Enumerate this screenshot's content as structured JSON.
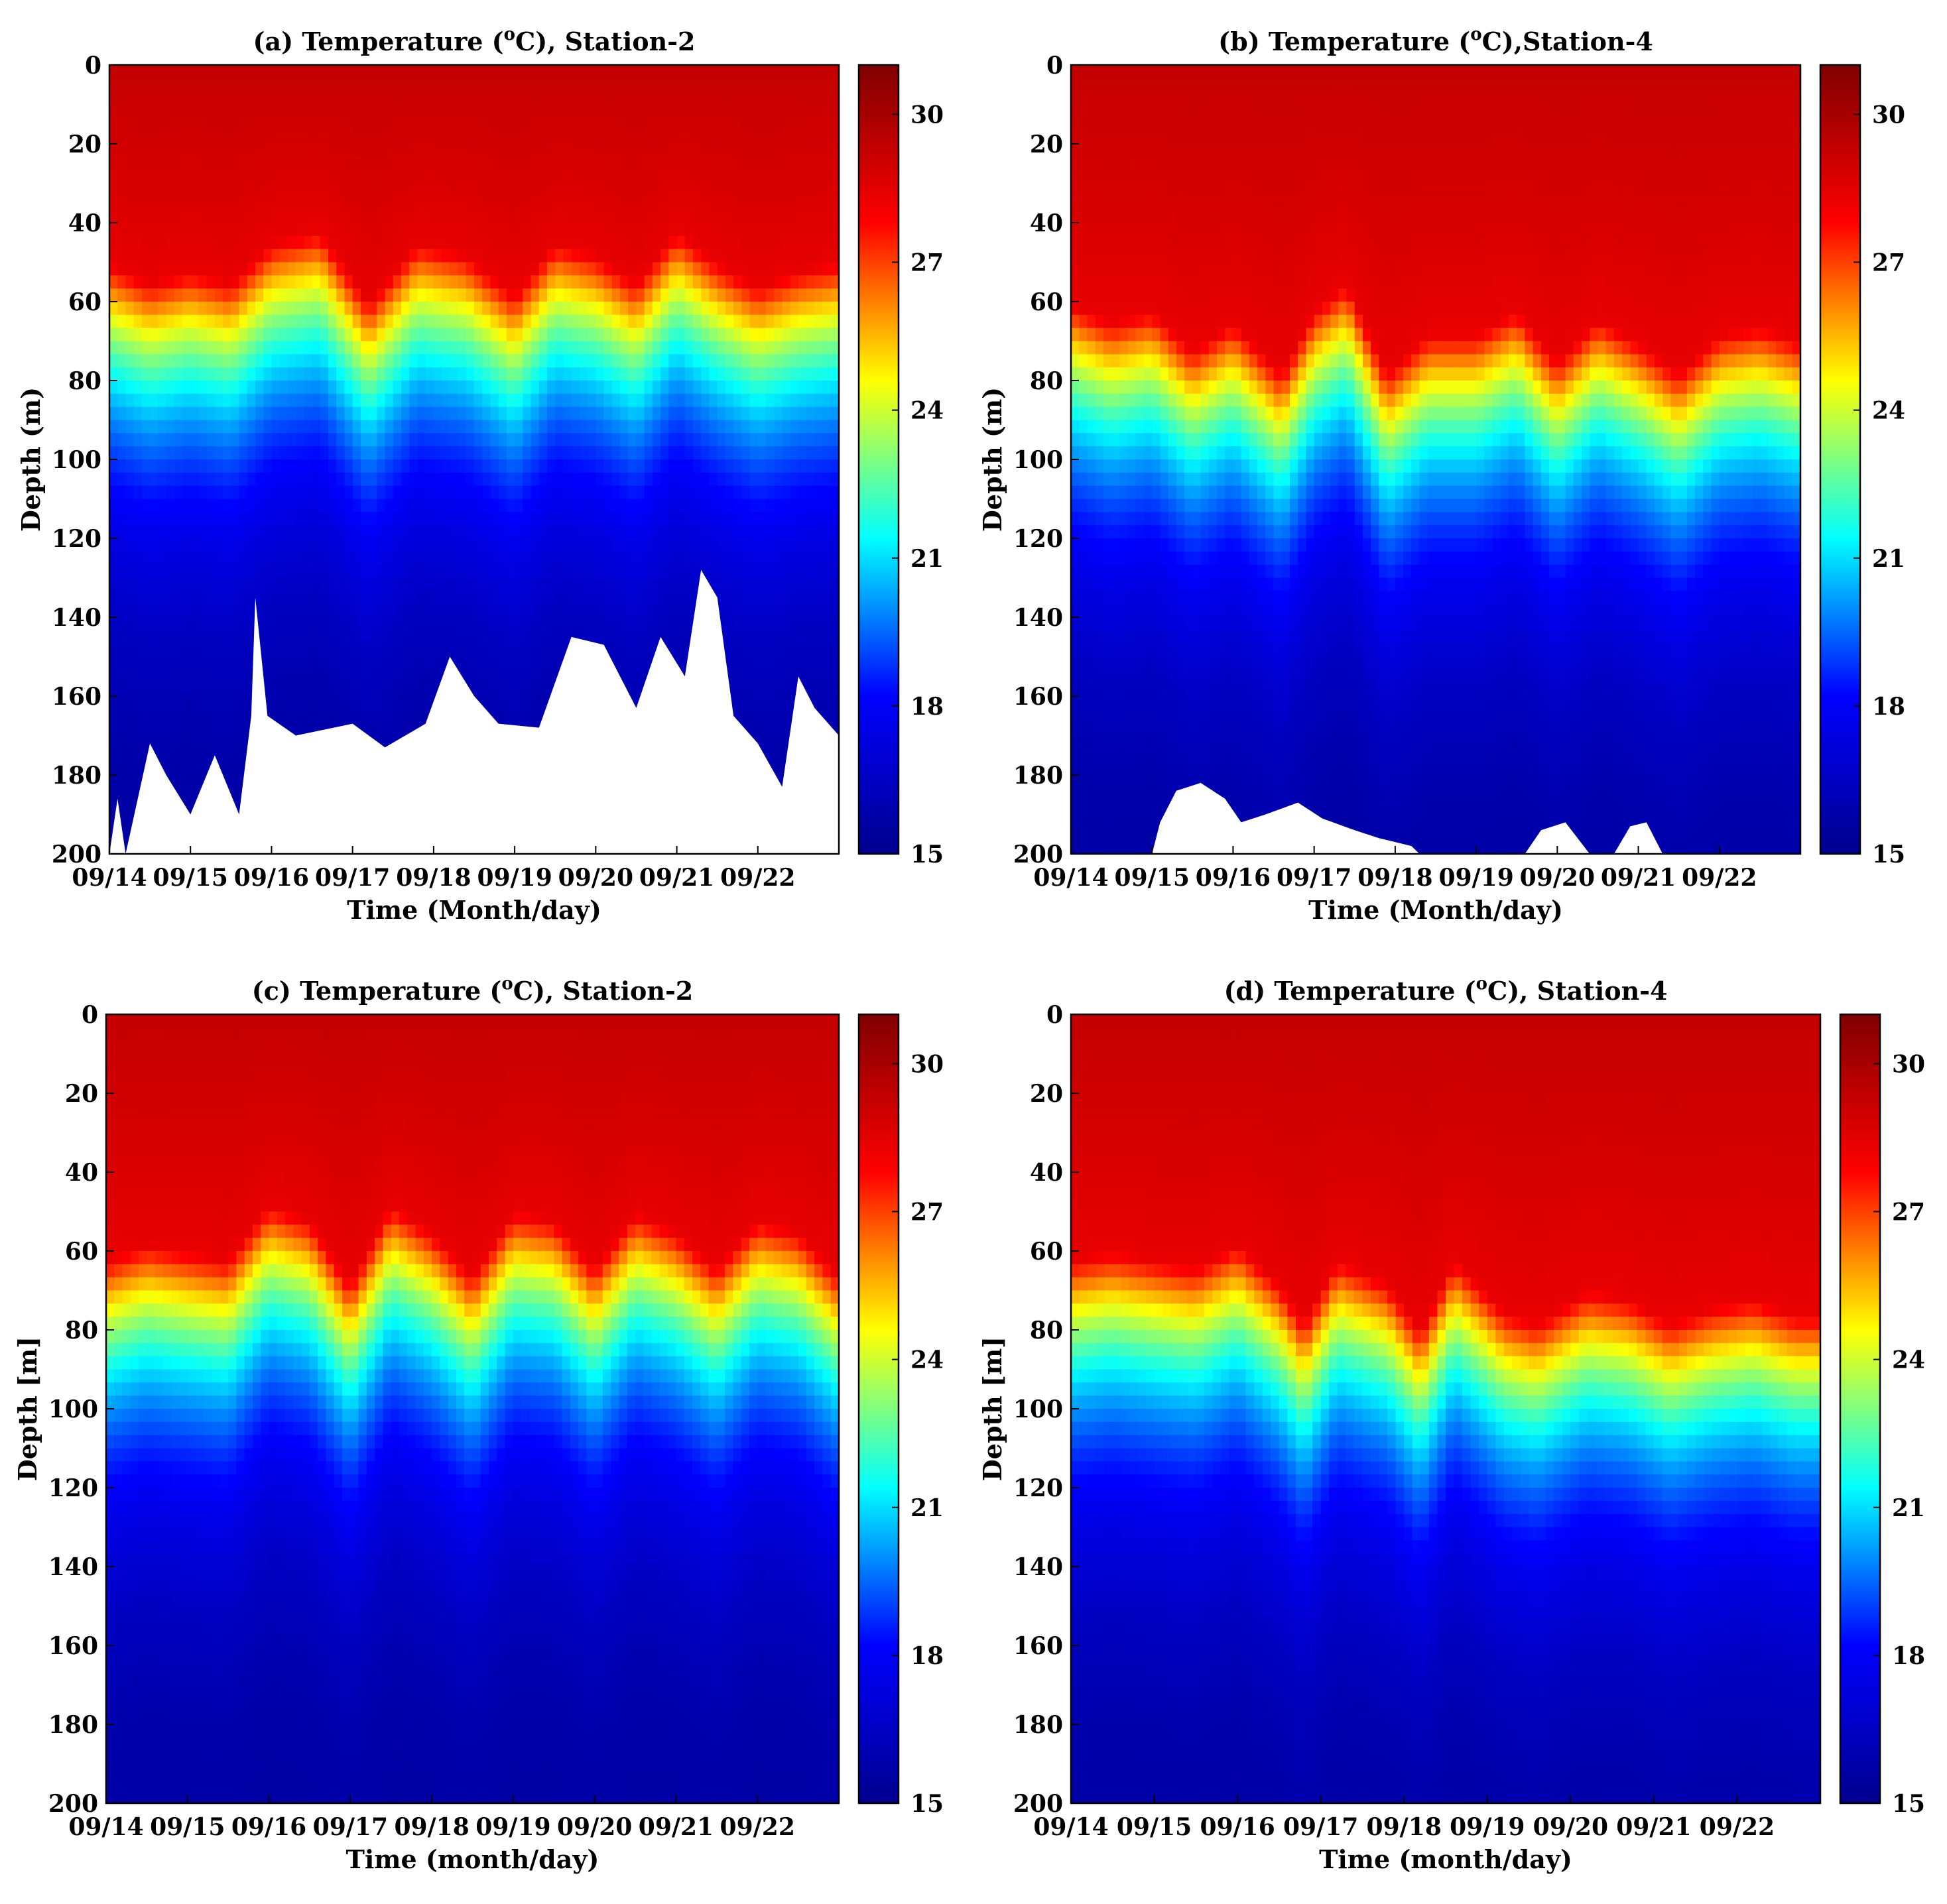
{
  "colormap": [
    "#00008f",
    "#0000ff",
    "#00ffff",
    "#ffff00",
    "#ff0000",
    "#800000"
  ],
  "chart_data": [
    {
      "id": "a",
      "type": "heatmap",
      "title_pre": "(a) Temperature (",
      "title_sup": "o",
      "title_post": "C), Station-2",
      "xlabel": "Time (Month/day)",
      "ylabel": "Depth (m)",
      "x_ticks": [
        "09/14",
        "09/15",
        "09/16",
        "09/17",
        "09/18",
        "09/19",
        "09/20",
        "09/21",
        "09/22"
      ],
      "y_ticks": [
        "0",
        "20",
        "40",
        "60",
        "80",
        "100",
        "120",
        "140",
        "160",
        "180",
        "200"
      ],
      "xlim_days": [
        0,
        9
      ],
      "ylim": [
        0,
        200
      ],
      "colorbar_ticks": [
        "30",
        "27",
        "24",
        "21",
        "18",
        "15"
      ],
      "clim": [
        15,
        31
      ],
      "thermocline_depth": [
        [
          0,
          50
        ],
        [
          0.5,
          55
        ],
        [
          1,
          52
        ],
        [
          1.5,
          55
        ],
        [
          2,
          45
        ],
        [
          2.6,
          42
        ],
        [
          3.2,
          60
        ],
        [
          3.8,
          45
        ],
        [
          4.4,
          48
        ],
        [
          5,
          58
        ],
        [
          5.5,
          45
        ],
        [
          6,
          48
        ],
        [
          6.5,
          55
        ],
        [
          7,
          42
        ],
        [
          7.5,
          50
        ],
        [
          8,
          56
        ],
        [
          8.5,
          52
        ],
        [
          9,
          50
        ]
      ],
      "bottom_mask": [
        [
          0,
          200
        ],
        [
          0.1,
          186
        ],
        [
          0.2,
          200
        ],
        [
          0.5,
          172
        ],
        [
          0.7,
          180
        ],
        [
          1,
          190
        ],
        [
          1.3,
          175
        ],
        [
          1.6,
          190
        ],
        [
          1.75,
          165
        ],
        [
          1.8,
          135
        ],
        [
          1.95,
          165
        ],
        [
          2.3,
          170
        ],
        [
          3,
          167
        ],
        [
          3.4,
          173
        ],
        [
          3.9,
          167
        ],
        [
          4.2,
          150
        ],
        [
          4.5,
          160
        ],
        [
          4.8,
          167
        ],
        [
          5.3,
          168
        ],
        [
          5.7,
          145
        ],
        [
          6.1,
          147
        ],
        [
          6.5,
          163
        ],
        [
          6.8,
          145
        ],
        [
          7.1,
          155
        ],
        [
          7.3,
          128
        ],
        [
          7.5,
          135
        ],
        [
          7.7,
          165
        ],
        [
          8,
          172
        ],
        [
          8.3,
          183
        ],
        [
          8.5,
          155
        ],
        [
          8.7,
          163
        ],
        [
          9,
          170
        ]
      ]
    },
    {
      "id": "b",
      "type": "heatmap",
      "title_pre": "(b) Temperature (",
      "title_sup": "o",
      "title_post": "C),Station-4",
      "xlabel": "Time (Month/day)",
      "ylabel": "Depth (m)",
      "x_ticks": [
        "09/14",
        "09/15",
        "09/16",
        "09/17",
        "09/18",
        "09/19",
        "09/20",
        "09/21",
        "09/22"
      ],
      "y_ticks": [
        "0",
        "20",
        "40",
        "60",
        "80",
        "100",
        "120",
        "140",
        "160",
        "180",
        "200"
      ],
      "xlim_days": [
        0,
        9
      ],
      "ylim": [
        0,
        200
      ],
      "colorbar_ticks": [
        "30",
        "27",
        "24",
        "21",
        "18",
        "15"
      ],
      "clim": [
        15,
        31
      ],
      "thermocline_depth": [
        [
          0,
          60
        ],
        [
          0.5,
          65
        ],
        [
          1,
          62
        ],
        [
          1.5,
          72
        ],
        [
          2,
          65
        ],
        [
          2.6,
          78
        ],
        [
          3,
          62
        ],
        [
          3.4,
          55
        ],
        [
          3.9,
          78
        ],
        [
          4.4,
          68
        ],
        [
          5,
          68
        ],
        [
          5.5,
          62
        ],
        [
          6,
          75
        ],
        [
          6.5,
          64
        ],
        [
          7,
          70
        ],
        [
          7.5,
          78
        ],
        [
          8,
          68
        ],
        [
          8.5,
          66
        ],
        [
          9,
          70
        ]
      ],
      "bottom_mask": [
        [
          1,
          200
        ],
        [
          1.1,
          192
        ],
        [
          1.3,
          184
        ],
        [
          1.6,
          182
        ],
        [
          1.9,
          186
        ],
        [
          2.1,
          192
        ],
        [
          2.4,
          190
        ],
        [
          2.8,
          187
        ],
        [
          3.1,
          191
        ],
        [
          3.5,
          194
        ],
        [
          3.8,
          196
        ],
        [
          4.2,
          198
        ],
        [
          4.3,
          200
        ],
        [
          5.6,
          200
        ],
        [
          5.8,
          194
        ],
        [
          6.1,
          192
        ],
        [
          6.4,
          200
        ],
        [
          6.7,
          200
        ],
        [
          6.9,
          193
        ],
        [
          7.1,
          192
        ],
        [
          7.3,
          200
        ]
      ]
    },
    {
      "id": "c",
      "type": "heatmap",
      "title_pre": "(c) Temperature (",
      "title_sup": "o",
      "title_post": "C), Station-2",
      "xlabel": "Time (month/day)",
      "ylabel": "Depth [m]",
      "x_ticks": [
        "09/14",
        "09/15",
        "09/16",
        "09/17",
        "09/18",
        "09/19",
        "09/20",
        "09/21",
        "09/22"
      ],
      "y_ticks": [
        "0",
        "20",
        "40",
        "60",
        "80",
        "100",
        "120",
        "140",
        "160",
        "180",
        "200"
      ],
      "xlim_days": [
        0,
        9
      ],
      "ylim": [
        0,
        200
      ],
      "colorbar_ticks": [
        "30",
        "27",
        "24",
        "21",
        "18",
        "15"
      ],
      "clim": [
        15,
        31
      ],
      "thermocline_depth": [
        [
          0,
          62
        ],
        [
          0.5,
          58
        ],
        [
          1,
          60
        ],
        [
          1.5,
          62
        ],
        [
          2,
          48
        ],
        [
          2.5,
          52
        ],
        [
          3,
          68
        ],
        [
          3.5,
          48
        ],
        [
          4,
          55
        ],
        [
          4.5,
          66
        ],
        [
          5,
          50
        ],
        [
          5.5,
          52
        ],
        [
          6,
          64
        ],
        [
          6.5,
          50
        ],
        [
          7,
          55
        ],
        [
          7.5,
          64
        ],
        [
          8,
          52
        ],
        [
          8.5,
          55
        ],
        [
          9,
          66
        ]
      ],
      "bottom_mask": []
    },
    {
      "id": "d",
      "type": "heatmap",
      "title_pre": "(d) Temperature (",
      "title_sup": "o",
      "title_post": "C), Station-4",
      "xlabel": "Time (month/day)",
      "ylabel": "Depth [m]",
      "x_ticks": [
        "09/14",
        "09/15",
        "09/16",
        "09/17",
        "09/18",
        "09/19",
        "09/20",
        "09/21",
        "09/22"
      ],
      "y_ticks": [
        "0",
        "20",
        "40",
        "60",
        "80",
        "100",
        "120",
        "140",
        "160",
        "180",
        "200"
      ],
      "xlim_days": [
        0,
        9
      ],
      "ylim": [
        0,
        200
      ],
      "colorbar_ticks": [
        "30",
        "27",
        "24",
        "21",
        "18",
        "15"
      ],
      "clim": [
        15,
        31
      ],
      "thermocline_depth": [
        [
          0,
          62
        ],
        [
          0.5,
          60
        ],
        [
          1,
          62
        ],
        [
          1.5,
          64
        ],
        [
          2,
          58
        ],
        [
          2.5,
          68
        ],
        [
          2.8,
          78
        ],
        [
          3.2,
          62
        ],
        [
          3.8,
          68
        ],
        [
          4.2,
          80
        ],
        [
          4.6,
          62
        ],
        [
          5.2,
          75
        ],
        [
          5.6,
          78
        ],
        [
          6.2,
          70
        ],
        [
          6.7,
          72
        ],
        [
          7.2,
          78
        ],
        [
          7.7,
          74
        ],
        [
          8.2,
          72
        ],
        [
          8.7,
          76
        ],
        [
          9,
          76
        ]
      ],
      "bottom_mask": []
    }
  ]
}
